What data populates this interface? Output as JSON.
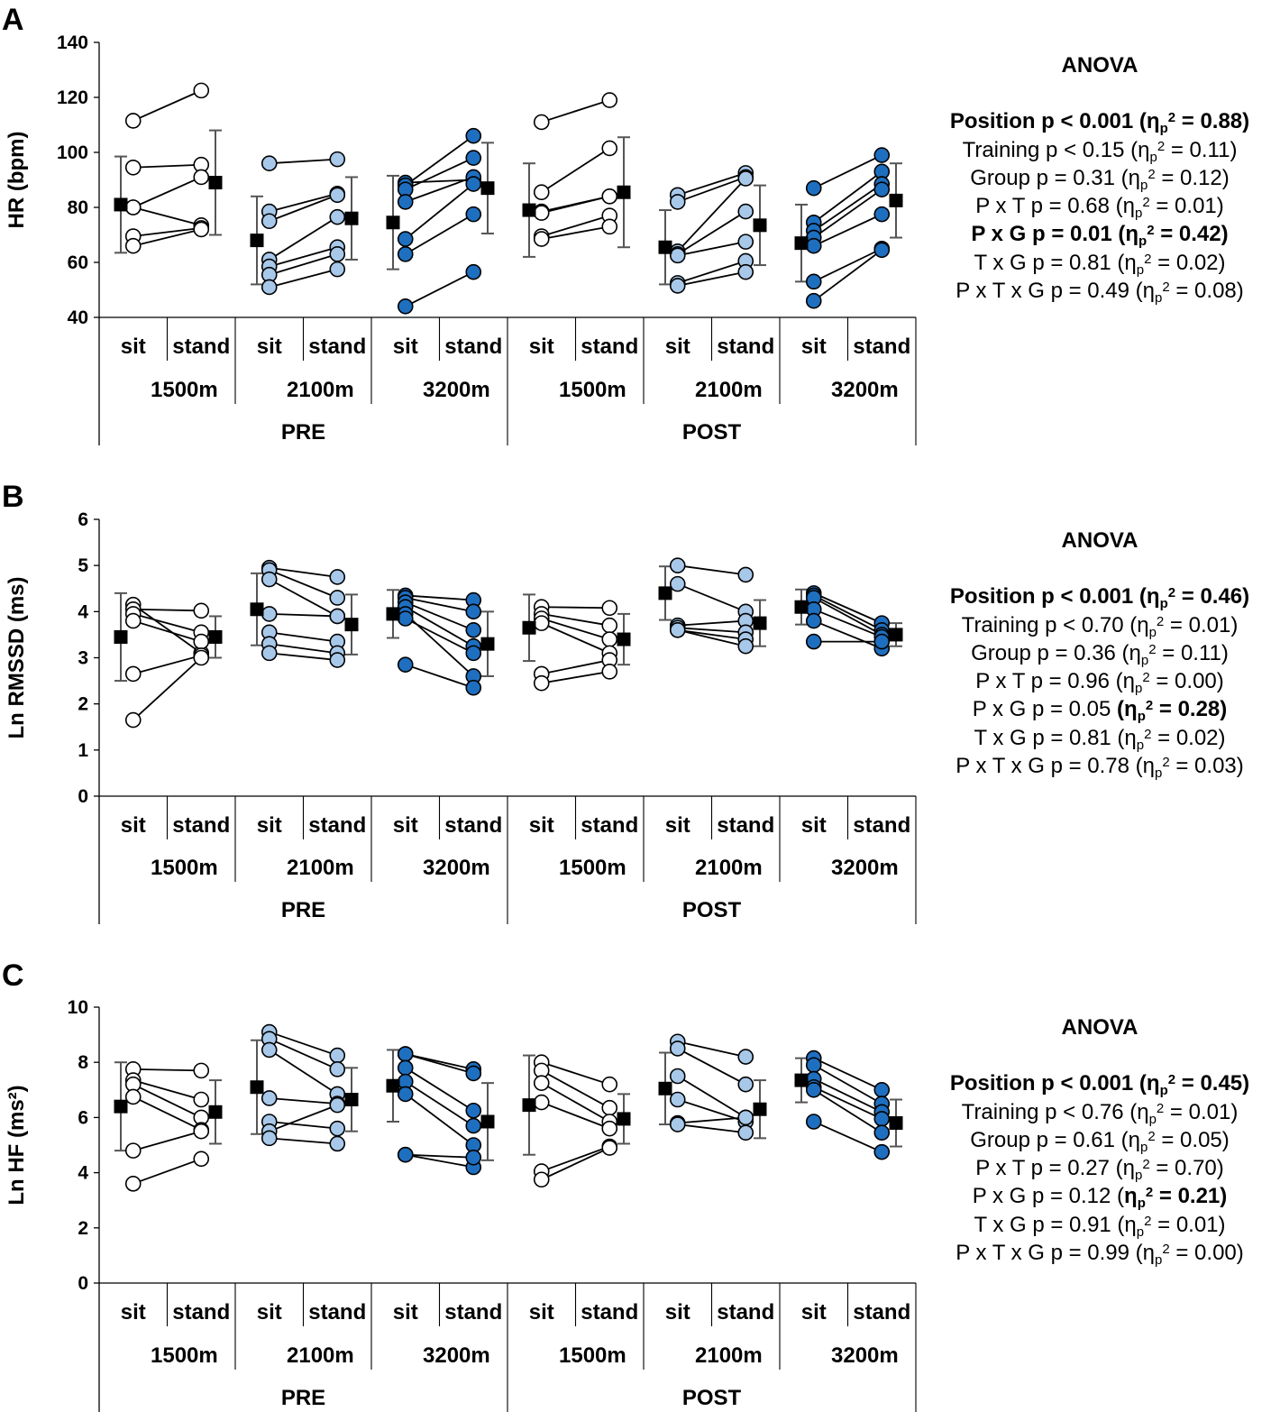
{
  "chart_data": [
    {
      "panel": "A",
      "type": "scatter",
      "ylabel": "HR (bpm)",
      "ylim": [
        40,
        140
      ],
      "yticks": [
        "40",
        "60",
        "80",
        "100",
        "120",
        "140"
      ],
      "positions": [
        "sit",
        "stand"
      ],
      "distances": [
        "1500m",
        "2100m",
        "3200m"
      ],
      "phases": [
        "PRE",
        "POST"
      ],
      "groups": [
        {
          "phase": "PRE",
          "distance": "1500m",
          "fill": "#ffffff",
          "pairs": [
            [
              111.5,
              122.5
            ],
            [
              94.5,
              95.5
            ],
            [
              80,
              91
            ],
            [
              80,
              73.5
            ],
            [
              69.5,
              72.5
            ],
            [
              66,
              72
            ]
          ],
          "mean": [
            81,
            89
          ],
          "sd": [
            17.5,
            19
          ]
        },
        {
          "phase": "PRE",
          "distance": "2100m",
          "fill": "#a8c8ea",
          "pairs": [
            [
              96,
              97.5
            ],
            [
              78.5,
              85
            ],
            [
              75,
              84.5
            ],
            [
              61,
              76.5
            ],
            [
              58.5,
              65.5
            ],
            [
              55.5,
              63
            ],
            [
              51,
              57.5
            ]
          ],
          "mean": [
            68,
            76
          ],
          "sd": [
            16,
            15
          ]
        },
        {
          "phase": "PRE",
          "distance": "3200m",
          "fill": "#1e6fc0",
          "pairs": [
            [
              89,
              90
            ],
            [
              88,
              106
            ],
            [
              86.5,
              98
            ],
            [
              82,
              91
            ],
            [
              68.5,
              88.5
            ],
            [
              63,
              77.5
            ],
            [
              44,
              56.5
            ]
          ],
          "mean": [
            74.5,
            87
          ],
          "sd": [
            17,
            16.5
          ]
        },
        {
          "phase": "POST",
          "distance": "1500m",
          "fill": "#ffffff",
          "pairs": [
            [
              111,
              119
            ],
            [
              85.5,
              101.5
            ],
            [
              78.5,
              84
            ],
            [
              78,
              84
            ],
            [
              69.5,
              77
            ],
            [
              68.5,
              73
            ]
          ],
          "mean": [
            79,
            85.5
          ],
          "sd": [
            17,
            20
          ]
        },
        {
          "phase": "POST",
          "distance": "2100m",
          "fill": "#a8c8ea",
          "pairs": [
            [
              84.5,
              92.5
            ],
            [
              82,
              91
            ],
            [
              64,
              90.5
            ],
            [
              63,
              78.5
            ],
            [
              62.5,
              67.5
            ],
            [
              52.5,
              60.5
            ],
            [
              51.5,
              56.5
            ]
          ],
          "mean": [
            65.5,
            73.5
          ],
          "sd": [
            13.5,
            14.5
          ]
        },
        {
          "phase": "POST",
          "distance": "3200m",
          "fill": "#1e6fc0",
          "pairs": [
            [
              87,
              99
            ],
            [
              74.5,
              93
            ],
            [
              71.5,
              88.5
            ],
            [
              69,
              86.5
            ],
            [
              66,
              77.5
            ],
            [
              53,
              65
            ],
            [
              46,
              64.5
            ]
          ],
          "mean": [
            67,
            82.5
          ],
          "sd": [
            14,
            13.5
          ]
        }
      ],
      "anova": {
        "title": "ANOVA",
        "lines": [
          {
            "pre": "Position p < 0.001 (η",
            "post": " = 0.88)",
            "bold": true
          },
          {
            "pre": "Training p < 0.15 (η",
            "post": " = 0.11)",
            "bold": false
          },
          {
            "pre": "Group p = 0.31 (η",
            "post": " = 0.12)",
            "bold": false
          },
          {
            "pre": "P x T p = 0.68 (η",
            "post": " = 0.01)",
            "bold": false
          },
          {
            "pre": "P x G p = 0.01 (η",
            "post": " = 0.42)",
            "bold": true
          },
          {
            "pre": "T x G p = 0.81 (η",
            "post": " = 0.02)",
            "bold": false
          },
          {
            "pre": "P x T x G p = 0.49 (η",
            "post": " = 0.08)",
            "bold": false
          }
        ]
      }
    },
    {
      "panel": "B",
      "type": "scatter",
      "ylabel": "Ln RMSSD (ms)",
      "ylim": [
        0,
        6
      ],
      "yticks": [
        "0",
        "1",
        "2",
        "3",
        "4",
        "5",
        "6"
      ],
      "positions": [
        "sit",
        "stand"
      ],
      "distances": [
        "1500m",
        "2100m",
        "3200m"
      ],
      "phases": [
        "PRE",
        "POST"
      ],
      "groups": [
        {
          "phase": "PRE",
          "distance": "1500m",
          "fill": "#ffffff",
          "pairs": [
            [
              4.15,
              3.1
            ],
            [
              4.05,
              4.02
            ],
            [
              3.95,
              3.55
            ],
            [
              3.8,
              3.35
            ],
            [
              2.65,
              3.05
            ],
            [
              1.65,
              3.0
            ]
          ],
          "mean": [
            3.45,
            3.45
          ],
          "sd": [
            0.95,
            0.45
          ]
        },
        {
          "phase": "PRE",
          "distance": "2100m",
          "fill": "#a8c8ea",
          "pairs": [
            [
              4.95,
              4.75
            ],
            [
              4.9,
              4.3
            ],
            [
              4.7,
              3.9
            ],
            [
              3.95,
              3.9
            ],
            [
              3.55,
              3.35
            ],
            [
              3.3,
              3.1
            ],
            [
              3.1,
              2.95
            ]
          ],
          "mean": [
            4.05,
            3.72
          ],
          "sd": [
            0.78,
            0.65
          ]
        },
        {
          "phase": "PRE",
          "distance": "3200m",
          "fill": "#1e6fc0",
          "pairs": [
            [
              4.35,
              4.25
            ],
            [
              4.3,
              4.0
            ],
            [
              4.2,
              3.6
            ],
            [
              4.1,
              3.25
            ],
            [
              3.95,
              2.6
            ],
            [
              3.85,
              3.1
            ],
            [
              2.85,
              2.35
            ]
          ],
          "mean": [
            3.95,
            3.3
          ],
          "sd": [
            0.52,
            0.7
          ]
        },
        {
          "phase": "POST",
          "distance": "1500m",
          "fill": "#ffffff",
          "pairs": [
            [
              4.1,
              4.08
            ],
            [
              3.95,
              3.7
            ],
            [
              3.85,
              3.4
            ],
            [
              3.75,
              3.1
            ],
            [
              2.65,
              2.95
            ],
            [
              2.45,
              2.7
            ]
          ],
          "mean": [
            3.65,
            3.4
          ],
          "sd": [
            0.72,
            0.55
          ]
        },
        {
          "phase": "POST",
          "distance": "2100m",
          "fill": "#a8c8ea",
          "pairs": [
            [
              5.0,
              4.8
            ],
            [
              4.6,
              4.0
            ],
            [
              3.7,
              3.8
            ],
            [
              3.65,
              3.55
            ],
            [
              3.6,
              3.4
            ],
            [
              3.6,
              3.25
            ]
          ],
          "mean": [
            4.4,
            3.75
          ],
          "sd": [
            0.58,
            0.5
          ]
        },
        {
          "phase": "POST",
          "distance": "3200m",
          "fill": "#1e6fc0",
          "pairs": [
            [
              4.4,
              3.75
            ],
            [
              4.35,
              3.6
            ],
            [
              4.3,
              3.5
            ],
            [
              4.05,
              3.45
            ],
            [
              3.8,
              3.2
            ],
            [
              3.35,
              3.35
            ]
          ],
          "mean": [
            4.1,
            3.5
          ],
          "sd": [
            0.38,
            0.25
          ]
        }
      ],
      "anova": {
        "title": "ANOVA",
        "lines": [
          {
            "pre": "Position p < 0.001 (η",
            "post": " = 0.46)",
            "bold": true
          },
          {
            "pre": "Training p < 0.70 (η",
            "post": " = 0.01)",
            "bold": false
          },
          {
            "pre": "Group p = 0.36 (η",
            "post": " = 0.11)",
            "bold": false
          },
          {
            "pre": "P x T p = 0.96 (η",
            "post": " = 0.00)",
            "bold": false
          },
          {
            "pre": "P x G p = 0.05 ",
            "eta": "(η",
            "post": " = 0.28)",
            "bold": false,
            "etaBold": true
          },
          {
            "pre": "T x G p = 0.81 (η",
            "post": " = 0.02)",
            "bold": false
          },
          {
            "pre": "P x T x G p = 0.78 (η",
            "post": " = 0.03)",
            "bold": false
          }
        ]
      }
    },
    {
      "panel": "C",
      "type": "scatter",
      "ylabel": "Ln HF (ms²)",
      "ylim": [
        0,
        10
      ],
      "yticks": [
        "0",
        "2",
        "4",
        "6",
        "8",
        "10"
      ],
      "positions": [
        "sit",
        "stand"
      ],
      "distances": [
        "1500m",
        "2100m",
        "3200m"
      ],
      "phases": [
        "PRE",
        "POST"
      ],
      "groups": [
        {
          "phase": "PRE",
          "distance": "1500m",
          "fill": "#ffffff",
          "pairs": [
            [
              7.75,
              7.7
            ],
            [
              7.35,
              6.65
            ],
            [
              7.2,
              6.0
            ],
            [
              6.75,
              5.55
            ],
            [
              4.8,
              5.5
            ],
            [
              3.6,
              4.5
            ]
          ],
          "mean": [
            6.4,
            6.2
          ],
          "sd": [
            1.6,
            1.15
          ]
        },
        {
          "phase": "PRE",
          "distance": "2100m",
          "fill": "#a8c8ea",
          "pairs": [
            [
              9.1,
              8.25
            ],
            [
              8.85,
              7.75
            ],
            [
              8.45,
              6.85
            ],
            [
              6.7,
              6.5
            ],
            [
              5.85,
              5.6
            ],
            [
              5.5,
              6.45
            ],
            [
              5.25,
              5.05
            ]
          ],
          "mean": [
            7.1,
            6.65
          ],
          "sd": [
            1.7,
            1.15
          ]
        },
        {
          "phase": "PRE",
          "distance": "3200m",
          "fill": "#1e6fc0",
          "pairs": [
            [
              8.3,
              7.75
            ],
            [
              8.3,
              7.6
            ],
            [
              7.8,
              6.25
            ],
            [
              7.3,
              5.7
            ],
            [
              6.85,
              5.0
            ],
            [
              4.65,
              4.2
            ],
            [
              4.65,
              4.55
            ]
          ],
          "mean": [
            7.15,
            5.85
          ],
          "sd": [
            1.3,
            1.4
          ]
        },
        {
          "phase": "POST",
          "distance": "1500m",
          "fill": "#ffffff",
          "pairs": [
            [
              8.0,
              7.2
            ],
            [
              7.7,
              6.35
            ],
            [
              7.25,
              5.85
            ],
            [
              6.55,
              5.6
            ],
            [
              4.05,
              4.95
            ],
            [
              3.75,
              4.9
            ]
          ],
          "mean": [
            6.45,
            5.95
          ],
          "sd": [
            1.8,
            0.9
          ]
        },
        {
          "phase": "POST",
          "distance": "2100m",
          "fill": "#a8c8ea",
          "pairs": [
            [
              8.75,
              8.2
            ],
            [
              8.5,
              7.2
            ],
            [
              7.5,
              6.0
            ],
            [
              6.65,
              5.85
            ],
            [
              5.8,
              6.0
            ],
            [
              5.75,
              5.45
            ]
          ],
          "mean": [
            7.05,
            6.3
          ],
          "sd": [
            1.3,
            1.05
          ]
        },
        {
          "phase": "POST",
          "distance": "3200m",
          "fill": "#1e6fc0",
          "pairs": [
            [
              8.15,
              7.0
            ],
            [
              7.9,
              6.5
            ],
            [
              7.4,
              6.2
            ],
            [
              7.1,
              5.95
            ],
            [
              7.0,
              5.45
            ],
            [
              5.85,
              4.75
            ]
          ],
          "mean": [
            7.35,
            5.8
          ],
          "sd": [
            0.8,
            0.85
          ]
        }
      ],
      "anova": {
        "title": "ANOVA",
        "lines": [
          {
            "pre": "Position p < 0.001 (η",
            "post": " = 0.45)",
            "bold": true
          },
          {
            "pre": "Training p < 0.76 (η",
            "post": " = 0.01)",
            "bold": false
          },
          {
            "pre": "Group p = 0.61 (η",
            "post": " = 0.05)",
            "bold": false
          },
          {
            "pre": "P x T p = 0.27 (η",
            "post": " = 0.70)",
            "bold": false
          },
          {
            "pre": "P x G p = 0.12 (",
            "eta": "η",
            "post": " = 0.21)",
            "bold": false,
            "etaBold": true
          },
          {
            "pre": "T x G p = 0.91 (η",
            "post": " = 0.01)",
            "bold": false
          },
          {
            "pre": "P x T x G p = 0.99 (η",
            "post": " = 0.00)",
            "bold": false
          }
        ]
      }
    }
  ]
}
